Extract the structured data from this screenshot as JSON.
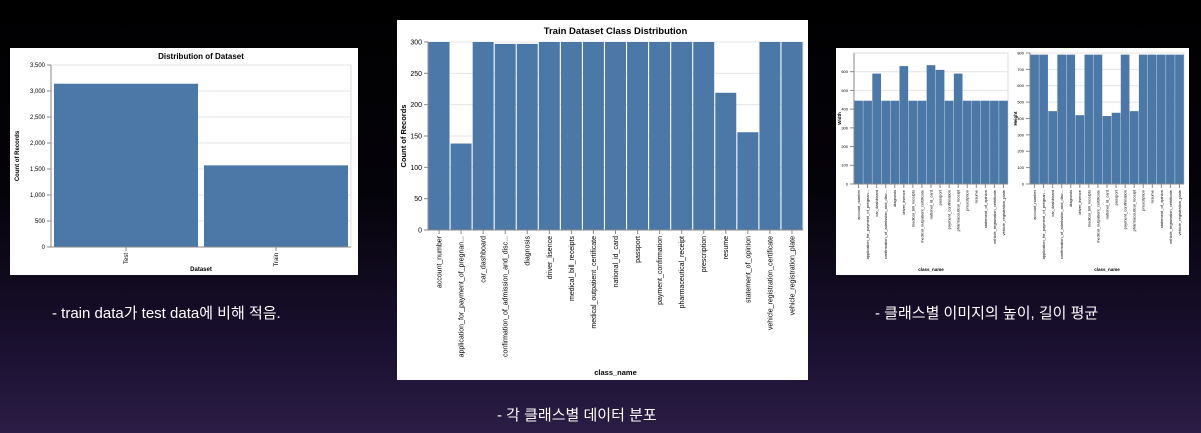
{
  "colors": {
    "bar": "#4c78a8",
    "background": "#ffffff"
  },
  "captions": {
    "left": "- train data가 test data에 비해 적음.",
    "center": "- 각 클래스별 데이터 분포",
    "right": "- 클래스별 이미지의 높이, 길이 평균"
  },
  "chart_data": [
    {
      "type": "bar",
      "title": "Distribution of Dataset",
      "xlabel": "Dataset",
      "ylabel": "Count of Records",
      "categories": [
        "Test",
        "Train"
      ],
      "values": [
        3140,
        1570
      ],
      "ylim": [
        0,
        3500
      ],
      "yticks": [
        0,
        500,
        1000,
        1500,
        2000,
        2500,
        3000,
        3500
      ],
      "ytick_labels": [
        "0",
        "500",
        "1,000",
        "1,500",
        "2,000",
        "2,500",
        "3,000",
        "3,500"
      ]
    },
    {
      "type": "bar",
      "title": "Train Dataset Class Distribution",
      "xlabel": "class_name",
      "ylabel": "Count of Records",
      "categories": [
        "account_number",
        "application_for_payment_of_pregnan...",
        "car_dashboard",
        "confirmation_of_admission_and_disc...",
        "diagnosis",
        "driver_lisence",
        "medical_bill_receipts",
        "medical_outpatient_certificate",
        "national_id_card",
        "passport",
        "payment_confirmation",
        "pharmaceutical_receipt",
        "prescription",
        "resume",
        "statement_of_opinion",
        "vehicle_registration_certificate",
        "vehicle_registration_plate"
      ],
      "values": [
        300,
        138,
        300,
        297,
        297,
        300,
        300,
        300,
        300,
        300,
        300,
        300,
        300,
        219,
        156,
        300,
        300
      ],
      "ylim": [
        0,
        300
      ],
      "yticks": [
        0,
        50,
        100,
        150,
        200,
        250,
        300
      ]
    },
    {
      "type": "bar",
      "title": "",
      "xlabel": "class_name",
      "ylabel": "Width",
      "categories": [
        "account_number",
        "application_for_payment_of_pregnan...",
        "car_dashboard",
        "confirmation_of_admission_and_disc...",
        "diagnosis",
        "driver_lisence",
        "medical_bill_receipts",
        "medical_outpatient_certificate",
        "national_id_card",
        "passport",
        "payment_confirmation",
        "pharmaceutical_receipt",
        "prescription",
        "resume",
        "statement_of_opinion",
        "vehicle_registration_certificate",
        "vehicle_registration_plate"
      ],
      "values": [
        445,
        445,
        590,
        445,
        445,
        630,
        445,
        445,
        635,
        610,
        445,
        590,
        445,
        445,
        445,
        445,
        445
      ],
      "ylim": [
        0,
        700
      ],
      "yticks": [
        0,
        100,
        200,
        300,
        400,
        500,
        600
      ]
    },
    {
      "type": "bar",
      "title": "",
      "xlabel": "class_name",
      "ylabel": "Height",
      "categories": [
        "account_number",
        "application_for_payment_of_pregnan...",
        "car_dashboard",
        "confirmation_of_admission_and_disc...",
        "diagnosis",
        "driver_lisence",
        "medical_bill_receipts",
        "medical_outpatient_certificate",
        "national_id_card",
        "passport",
        "payment_confirmation",
        "pharmaceutical_receipt",
        "prescription",
        "resume",
        "statement_of_opinion",
        "vehicle_registration_certificate",
        "vehicle_registration_plate"
      ],
      "values": [
        790,
        790,
        445,
        790,
        790,
        420,
        790,
        790,
        415,
        435,
        790,
        445,
        790,
        790,
        790,
        790,
        790
      ],
      "ylim": [
        0,
        800
      ],
      "yticks": [
        0,
        100,
        200,
        300,
        400,
        500,
        600,
        700,
        800
      ]
    }
  ]
}
